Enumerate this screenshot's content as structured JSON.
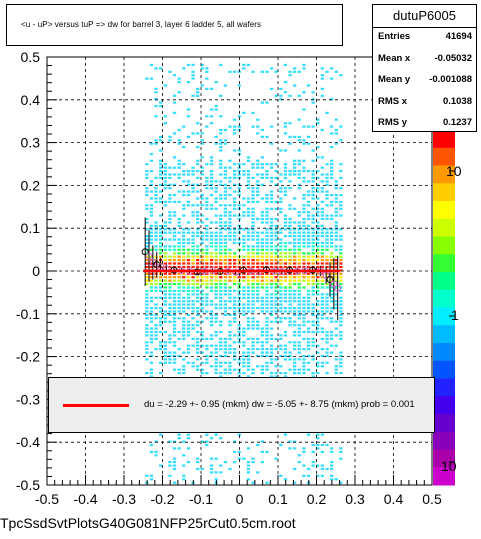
{
  "title": "<u - uP>       versus  tuP =>  dw for barrel 3, layer 6 ladder 5, all wafers",
  "stats": {
    "name": "dutuP6005",
    "rows": [
      {
        "key": "Entries",
        "value": "41694"
      },
      {
        "key": "Mean x",
        "value": "-0.05032"
      },
      {
        "key": "Mean y",
        "value": "-0.001088"
      },
      {
        "key": "RMS x",
        "value": "0.1038"
      },
      {
        "key": "RMS y",
        "value": "0.1237"
      }
    ]
  },
  "fit_text": "du =   -2.29 +-  0.95 (mkm) dw =   -5.05 +-  8.75 (mkm) prob = 0.001",
  "footer": "TpcSsdSvtPlotsG40G081NFP25rCut0.5cm.root",
  "colors": {
    "fit_line": "#ff0000",
    "profile_marker": "#000000"
  },
  "chart_data": {
    "type": "heatmap",
    "x_ticks": [
      "-0.5",
      "-0.4",
      "-0.3",
      "-0.2",
      "-0.1",
      "0",
      "0.1",
      "0.2",
      "0.3",
      "0.4",
      "0.5"
    ],
    "y_ticks": [
      "0.5",
      "0.4",
      "0.3",
      "0.2",
      "0.1",
      "0",
      "-0.1",
      "-0.2",
      "-0.3",
      "-0.4",
      "-0.5"
    ],
    "xlim": [
      -0.5,
      0.5
    ],
    "ylim": [
      -0.5,
      0.5
    ],
    "z_scale": "log",
    "z_labels": [
      "10",
      "1",
      "10"
    ],
    "grid": true,
    "fit": {
      "x": [
        -0.25,
        0.26
      ],
      "y": [
        0.0,
        0.0
      ]
    },
    "profile": {
      "x": [
        -0.245,
        -0.235,
        -0.225,
        -0.215,
        -0.205,
        -0.19,
        -0.17,
        -0.15,
        -0.13,
        -0.11,
        -0.09,
        -0.07,
        -0.05,
        -0.03,
        -0.01,
        0.01,
        0.03,
        0.05,
        0.07,
        0.09,
        0.11,
        0.13,
        0.15,
        0.17,
        0.19,
        0.21,
        0.225,
        0.235,
        0.245,
        0.255
      ],
      "y": [
        0.045,
        0.035,
        0.02,
        0.015,
        0.01,
        0.005,
        0.002,
        0.001,
        0.0,
        -0.002,
        0.0,
        0.001,
        -0.001,
        0.0,
        -0.003,
        0.002,
        0.0,
        -0.002,
        0.003,
        0.0,
        -0.001,
        0.002,
        0.0,
        0.001,
        0.002,
        0.0,
        -0.01,
        -0.02,
        -0.03,
        -0.04
      ],
      "err": [
        0.08,
        0.06,
        0.04,
        0.03,
        0.02,
        0.01,
        0.008,
        0.006,
        0.005,
        0.005,
        0.005,
        0.005,
        0.005,
        0.005,
        0.005,
        0.005,
        0.005,
        0.005,
        0.005,
        0.005,
        0.005,
        0.006,
        0.007,
        0.008,
        0.01,
        0.012,
        0.02,
        0.04,
        0.06,
        0.075
      ]
    }
  }
}
